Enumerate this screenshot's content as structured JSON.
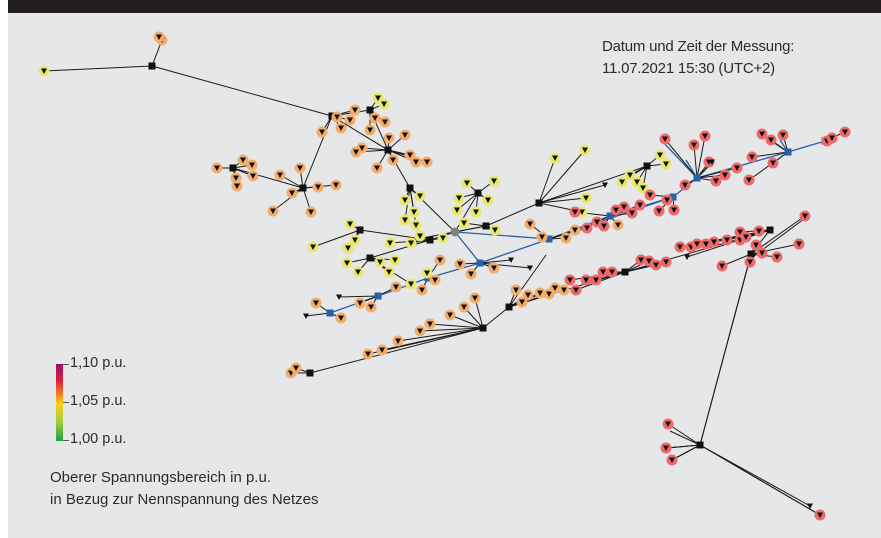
{
  "timestamp": {
    "title": "Datum und Zeit der Messung:",
    "value": "11.07.2021 15:30 (UTC+2)"
  },
  "legend": {
    "max_label": "1,10 p.u.",
    "mid_label": "1,05 p.u.",
    "min_label": "1,00 p.u.",
    "gradient_colors": [
      "#8e1466",
      "#e51c3c",
      "#f07a21",
      "#f7d11b",
      "#a8cf39",
      "#1aa14a"
    ]
  },
  "caption": {
    "line1": "Oberer Spannungsbereich in p.u.",
    "line2": "in Bezug zur Nennspannung des Netzes"
  },
  "colors": {
    "line_black": "#1a1a1a",
    "line_blue": "#2a5faa",
    "node_black": "#111111",
    "node_blue": "#2a5faa",
    "node_grey": "#808080",
    "voltage_low_yellow": "#e8e86a",
    "voltage_mid_orange": "#f2ad6a",
    "voltage_high_red": "#ee6a6a"
  }
}
